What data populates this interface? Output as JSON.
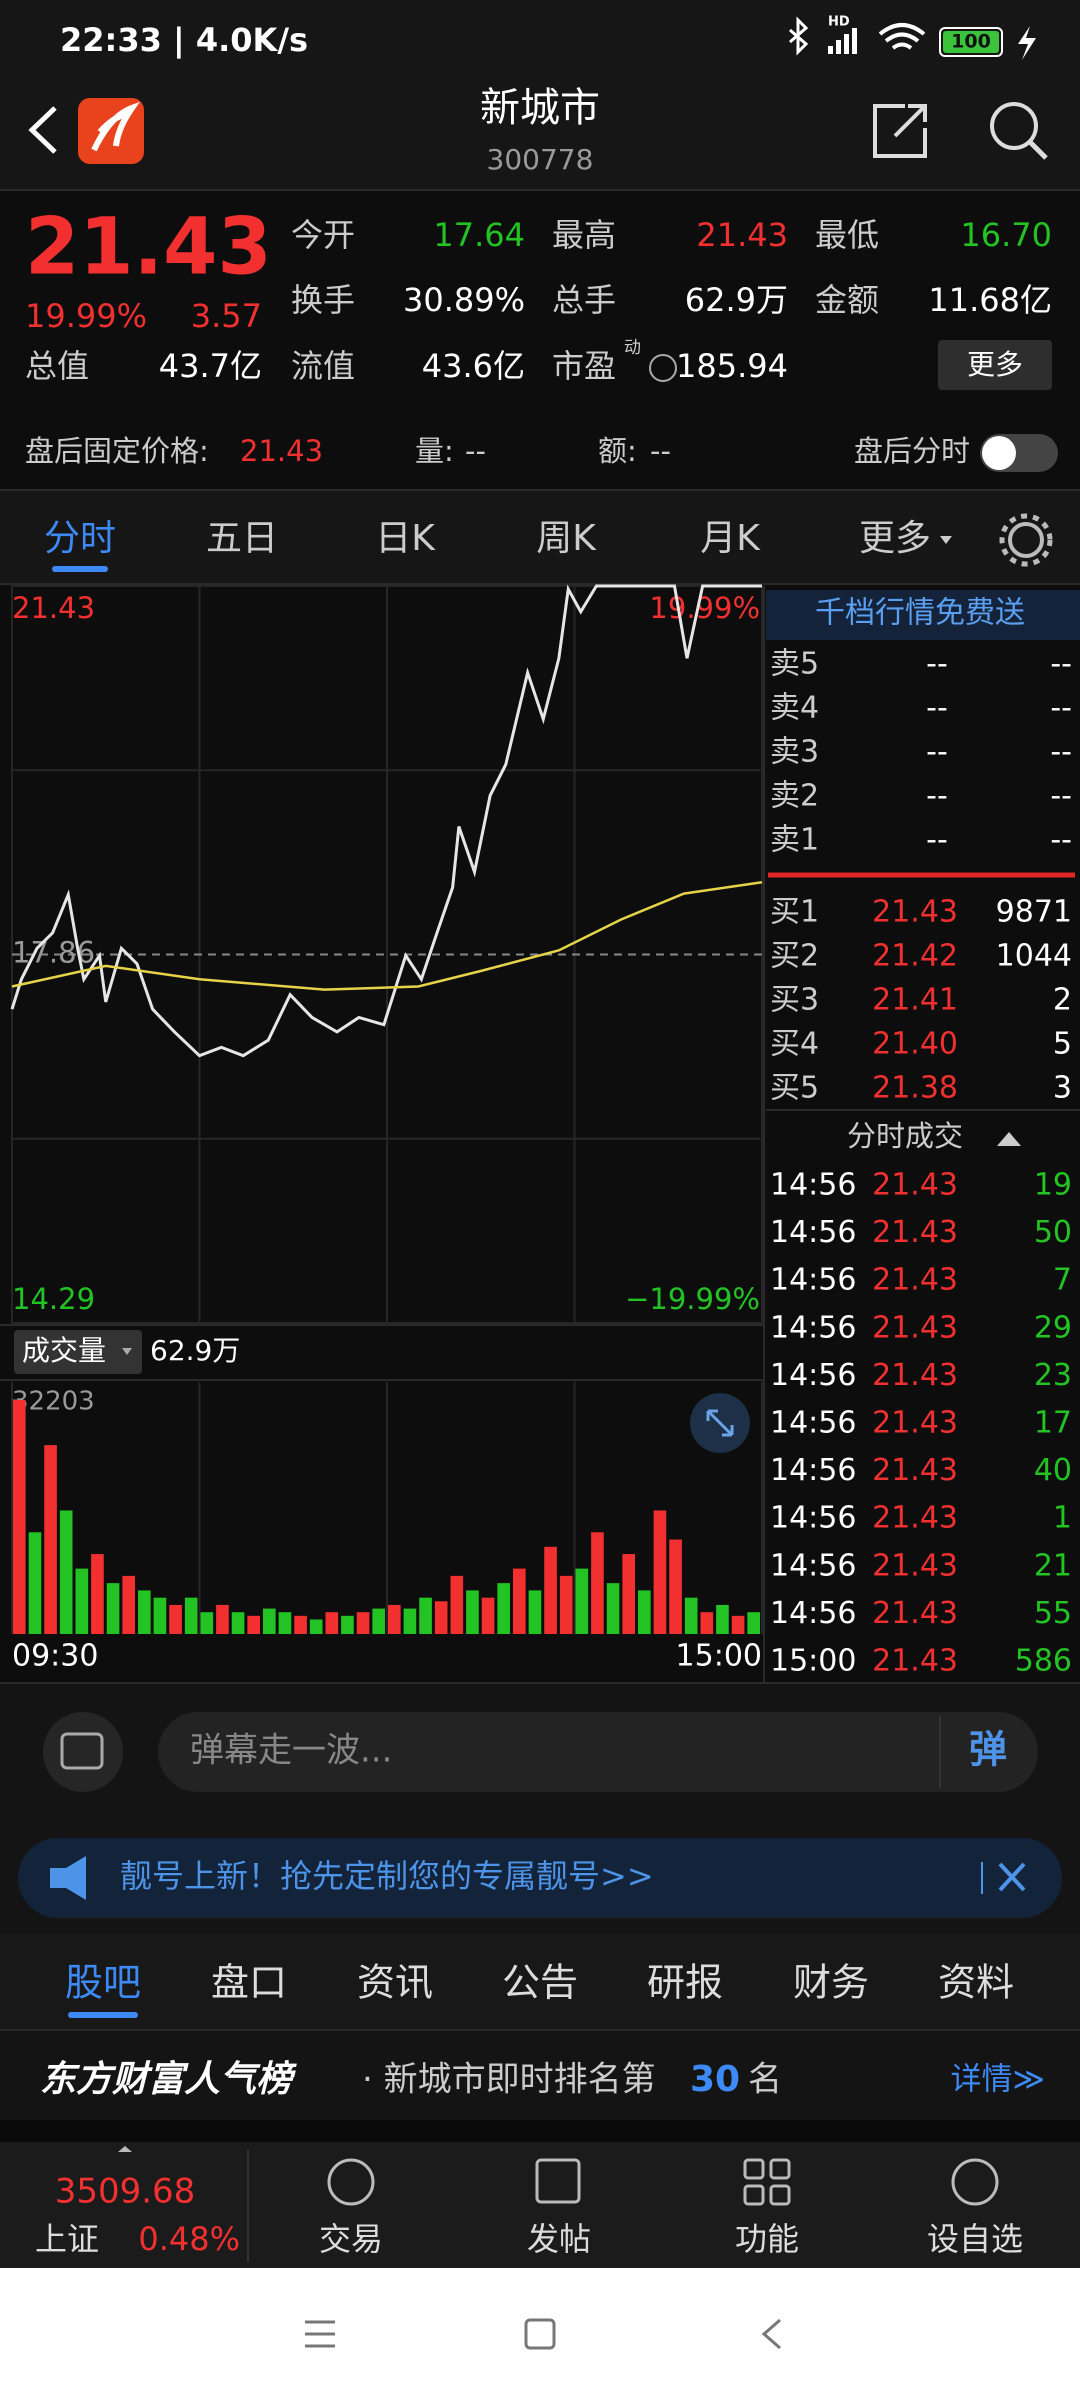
{
  "status": {
    "time": "22:33 | 4.0K/s",
    "hd": "HD",
    "battery": "100"
  },
  "header": {
    "title": "新城市",
    "code": "300778"
  },
  "quote": {
    "price": "21.43",
    "pct": "19.99%",
    "change": "3.57",
    "stats": [
      {
        "label": "今开",
        "value": "17.64",
        "color": "#22c322"
      },
      {
        "label": "最高",
        "value": "21.43",
        "color": "#f23030"
      },
      {
        "label": "最低",
        "value": "16.70",
        "color": "#22c322"
      },
      {
        "label": "换手",
        "value": "30.89%",
        "color": "#ffffff"
      },
      {
        "label": "总手",
        "value": "62.9万",
        "color": "#ffffff"
      },
      {
        "label": "金额",
        "value": "11.68亿",
        "color": "#ffffff"
      }
    ],
    "stats2": [
      {
        "label": "总值",
        "value": "43.7亿"
      },
      {
        "label": "流值",
        "value": "43.6亿"
      },
      {
        "label": "市盈",
        "sup": "动",
        "value": "185.94"
      }
    ],
    "more": "更多"
  },
  "after_hours": {
    "label": "盘后固定价格:",
    "price": "21.43",
    "vol_label": "量:",
    "vol": "--",
    "amt_label": "额:",
    "amt": "--",
    "toggle_label": "盘后分时"
  },
  "tabs": [
    "分时",
    "五日",
    "日K",
    "周K",
    "月K",
    "更多"
  ],
  "chart_data": {
    "type": "line",
    "xlim": [
      0,
      240
    ],
    "ylim": [
      14.29,
      21.43
    ],
    "yticks": [
      21.43,
      17.86,
      14.29
    ],
    "pct_ticks": [
      {
        "value": 19.99,
        "label": "19.99%"
      },
      {
        "value": -19.99,
        "label": "−19.99%"
      }
    ],
    "xticks": [
      {
        "value": 0,
        "label": "09:30"
      },
      {
        "value": 240,
        "label": "15:00"
      }
    ],
    "series": [
      {
        "name": "价格",
        "color": "#e6e6e6",
        "x": [
          0,
          3,
          8,
          13,
          18,
          21,
          23,
          28,
          30,
          35,
          40,
          45,
          52,
          60,
          67,
          74,
          82,
          89,
          96,
          104,
          111,
          119,
          126,
          131,
          136,
          141,
          143,
          148,
          153,
          158,
          165,
          170,
          175,
          178,
          182,
          187,
          202,
          212,
          216,
          221,
          229,
          236,
          240
        ],
        "values": [
          17.33,
          17.62,
          17.92,
          18.07,
          18.44,
          17.92,
          17.62,
          17.85,
          17.4,
          17.92,
          17.77,
          17.33,
          17.11,
          16.88,
          16.96,
          16.88,
          17.03,
          17.47,
          17.25,
          17.11,
          17.25,
          17.18,
          17.85,
          17.62,
          18.07,
          18.51,
          19.1,
          18.66,
          19.4,
          19.7,
          20.59,
          20.14,
          20.73,
          21.4,
          21.18,
          21.43,
          21.43,
          21.43,
          20.73,
          21.43,
          21.43,
          21.43,
          21.43
        ]
      },
      {
        "name": "均价",
        "color": "#e6d34a",
        "x": [
          0,
          30,
          60,
          100,
          130,
          150,
          175,
          195,
          215,
          240
        ],
        "values": [
          17.55,
          17.75,
          17.62,
          17.52,
          17.55,
          17.7,
          17.9,
          18.2,
          18.45,
          18.56
        ]
      }
    ],
    "volume": {
      "label": "成交量",
      "total": "62.9万",
      "ylim": [
        0,
        32203
      ],
      "yticks": [
        32203
      ],
      "values": [
        32203,
        14000,
        26000,
        17000,
        9000,
        11000,
        7000,
        8000,
        6000,
        5000,
        4000,
        5000,
        3000,
        4000,
        3000,
        2500,
        3500,
        3000,
        2500,
        2000,
        3000,
        2500,
        3000,
        3500,
        4000,
        3500,
        5000,
        4500,
        8000,
        6000,
        5000,
        7000,
        9000,
        6000,
        12000,
        8000,
        9000,
        14000,
        7000,
        11000,
        6000,
        17000,
        13000,
        5000,
        3000,
        4000,
        2500,
        3000
      ],
      "up": [
        1,
        0,
        1,
        0,
        0,
        1,
        0,
        1,
        0,
        0,
        1,
        0,
        0,
        1,
        0,
        1,
        0,
        0,
        1,
        0,
        1,
        0,
        1,
        0,
        1,
        0,
        0,
        1,
        1,
        0,
        1,
        0,
        1,
        0,
        1,
        1,
        0,
        1,
        0,
        1,
        0,
        1,
        1,
        0,
        1,
        0,
        1,
        0
      ],
      "colors": {
        "up": "#f23030",
        "down": "#22c322"
      }
    }
  },
  "order_book": {
    "promo": "千档行情免费送",
    "asks": [
      {
        "label": "卖5",
        "price": "--",
        "volume": "--"
      },
      {
        "label": "卖4",
        "price": "--",
        "volume": "--"
      },
      {
        "label": "卖3",
        "price": "--",
        "volume": "--"
      },
      {
        "label": "卖2",
        "price": "--",
        "volume": "--"
      },
      {
        "label": "卖1",
        "price": "--",
        "volume": "--"
      }
    ],
    "bids": [
      {
        "label": "买1",
        "price": "21.43",
        "volume": 9871
      },
      {
        "label": "买2",
        "price": "21.42",
        "volume": 1044
      },
      {
        "label": "买3",
        "price": "21.41",
        "volume": 2
      },
      {
        "label": "买4",
        "price": "21.40",
        "volume": 5
      },
      {
        "label": "买5",
        "price": "21.38",
        "volume": 3
      }
    ],
    "trades_title": "分时成交",
    "trades": [
      {
        "time": "14:56",
        "price": "21.43",
        "volume": 19
      },
      {
        "time": "14:56",
        "price": "21.43",
        "volume": 50
      },
      {
        "time": "14:56",
        "price": "21.43",
        "volume": 7
      },
      {
        "time": "14:56",
        "price": "21.43",
        "volume": 29
      },
      {
        "time": "14:56",
        "price": "21.43",
        "volume": 23
      },
      {
        "time": "14:56",
        "price": "21.43",
        "volume": 17
      },
      {
        "time": "14:56",
        "price": "21.43",
        "volume": 40
      },
      {
        "time": "14:56",
        "price": "21.43",
        "volume": 1
      },
      {
        "time": "14:56",
        "price": "21.43",
        "volume": 21
      },
      {
        "time": "14:56",
        "price": "21.43",
        "volume": 55
      },
      {
        "time": "15:00",
        "price": "21.43",
        "volume": 586
      }
    ]
  },
  "comment": {
    "placeholder": "弹幕走一波...",
    "button": "弹"
  },
  "banner": {
    "text": "靓号上新！抢先定制您的专属靓号>>"
  },
  "section_tabs": [
    "股吧",
    "盘口",
    "资讯",
    "公告",
    "研报",
    "财务",
    "资料"
  ],
  "rank": {
    "brand": "东方财富人气榜",
    "text": "· 新城市即时排名第",
    "rank": "30",
    "suffix": "名",
    "details": "详情≫"
  },
  "bottom_nav": {
    "index_value": "3509.68",
    "index_name": "上证",
    "index_pct": "0.48%",
    "items": [
      "交易",
      "发帖",
      "功能",
      "设自选"
    ]
  }
}
